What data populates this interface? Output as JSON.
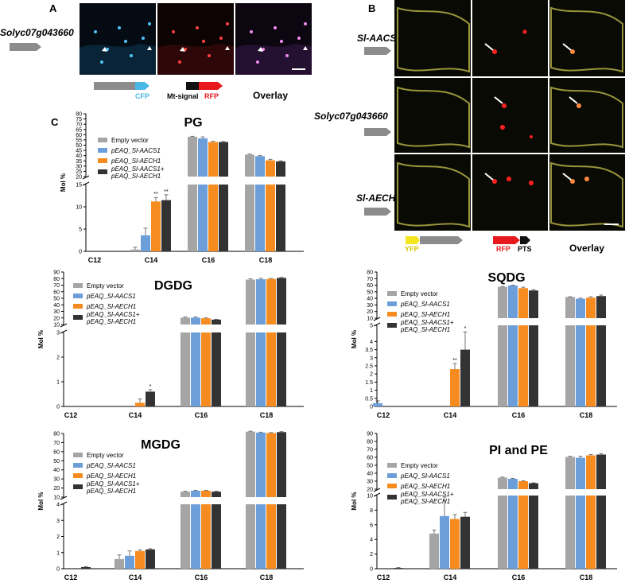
{
  "panel_letters": {
    "a": "A",
    "b": "B",
    "c": "C"
  },
  "panel_a": {
    "gene_label": "Solyc07g043660",
    "channel_captions": [
      "Overlay"
    ],
    "construct_labels": {
      "cfp": "CFP",
      "mt_signal": "Mt-signal",
      "rfp": "RFP"
    },
    "colors": {
      "cfp": "#49b8e6",
      "rfp": "#e8191c",
      "gene_arrow": "#8c8c8c",
      "mt_signal": "#111111"
    }
  },
  "panel_b": {
    "row_labels": [
      "Sl-AACS1",
      "Solyc07g043660",
      "Sl-AECH1"
    ],
    "construct_labels": {
      "yfp": "YFP",
      "rfp": "RFP",
      "pts": "PTS"
    },
    "overlay_caption": "Overlay",
    "colors": {
      "yfp": "#f3e61e",
      "rfp": "#e8191c",
      "pts": "#111111"
    }
  },
  "legend_entries": [
    "Empty vector",
    "pEAQ_Sl-AACS1",
    "pEAQ_Sl-AECH1",
    "pEAQ_Sl-AACS1+",
    "pEAQ_Sl-AECH1"
  ],
  "series_colors": [
    "#a5a5a5",
    "#6c9fd9",
    "#f68b1f",
    "#333333"
  ],
  "chart_data": [
    {
      "type": "bar",
      "title": "PG",
      "ylabel": "Mol %",
      "categories": [
        "C12",
        "C14",
        "C16",
        "C18"
      ],
      "ylim_lower": [
        0,
        15
      ],
      "yticks_lower": [
        0,
        5,
        10,
        15
      ],
      "ylim_upper": [
        20,
        80
      ],
      "yticks_upper": [
        20,
        25,
        30,
        35,
        40,
        45,
        50,
        55,
        60,
        65,
        70,
        75,
        80
      ],
      "series": [
        {
          "values": [
            0,
            0.4,
            58,
            41
          ],
          "errors": [
            0,
            0.5,
            0.5,
            0.5
          ]
        },
        {
          "values": [
            0,
            3.6,
            56.5,
            39.5
          ],
          "errors": [
            0,
            1.6,
            1.4,
            0.5
          ]
        },
        {
          "values": [
            0,
            11.2,
            53,
            35.5
          ],
          "errors": [
            0,
            0.9,
            0.8,
            1.0
          ]
        },
        {
          "values": [
            0,
            11.5,
            53,
            34.5
          ],
          "errors": [
            0,
            1.2,
            0.5,
            0.6
          ]
        }
      ],
      "significance": [
        {
          "category": "C14",
          "series": 2,
          "text": "**"
        },
        {
          "category": "C14",
          "series": 3,
          "text": "**"
        }
      ]
    },
    {
      "type": "bar",
      "title": "DGDG",
      "ylabel": "Mol %",
      "categories": [
        "C12",
        "C14",
        "C16",
        "C18"
      ],
      "ylim_lower": [
        0,
        3
      ],
      "yticks_lower": [
        0,
        1,
        2,
        3
      ],
      "ylim_upper": [
        10,
        90
      ],
      "yticks_upper": [
        10,
        20,
        30,
        40,
        50,
        60,
        70,
        80,
        90
      ],
      "series": [
        {
          "values": [
            0,
            0,
            20.5,
            78.5
          ],
          "errors": [
            0,
            0,
            1.0,
            1.0
          ]
        },
        {
          "values": [
            0,
            0,
            20.5,
            79
          ],
          "errors": [
            0,
            0,
            1.2,
            1.5
          ]
        },
        {
          "values": [
            0,
            0.15,
            19.5,
            79.5
          ],
          "errors": [
            0,
            0.15,
            0.6,
            0.8
          ]
        },
        {
          "values": [
            0,
            0.6,
            17.5,
            81
          ],
          "errors": [
            0,
            0.08,
            0.6,
            0.8
          ]
        }
      ],
      "significance": [
        {
          "category": "C14",
          "series": 3,
          "text": "*"
        }
      ]
    },
    {
      "type": "bar",
      "title": "SQDG",
      "ylabel": "Mol %",
      "categories": [
        "C12",
        "C14",
        "C16",
        "C18"
      ],
      "ylim_lower": [
        0,
        5
      ],
      "yticks_lower": [
        0,
        0.5,
        1,
        1.5,
        2,
        2.5,
        3,
        3.5,
        4,
        5
      ],
      "ylim_upper": [
        10,
        80
      ],
      "yticks_upper": [
        10,
        20,
        30,
        40,
        50,
        60,
        70,
        80
      ],
      "series": [
        {
          "values": [
            0,
            0,
            57.5,
            42
          ],
          "errors": [
            0,
            0,
            0.5,
            0.5
          ]
        },
        {
          "values": [
            0.2,
            0,
            59.5,
            39.5
          ],
          "errors": [
            0.15,
            0,
            0.6,
            0.8
          ]
        },
        {
          "values": [
            0,
            2.3,
            55.5,
            41
          ],
          "errors": [
            0,
            0.35,
            1.5,
            1.5
          ]
        },
        {
          "values": [
            0,
            3.5,
            52,
            43.5
          ],
          "errors": [
            0,
            1.1,
            1.2,
            1.5
          ]
        }
      ],
      "significance": [
        {
          "category": "C14",
          "series": 2,
          "text": "**"
        },
        {
          "category": "C14",
          "series": 3,
          "text": "*"
        }
      ]
    },
    {
      "type": "bar",
      "title": "MGDG",
      "ylabel": "Mol %",
      "categories": [
        "C12",
        "C14",
        "C16",
        "C18"
      ],
      "ylim_lower": [
        0,
        4
      ],
      "yticks_lower": [
        0,
        1,
        2,
        3,
        4
      ],
      "ylim_upper": [
        10,
        80
      ],
      "yticks_upper": [
        10,
        20,
        30,
        40,
        50,
        60,
        70,
        80
      ],
      "series": [
        {
          "values": [
            0,
            0.6,
            16,
            82
          ],
          "errors": [
            0,
            0.25,
            0.5,
            0.5
          ]
        },
        {
          "values": [
            0,
            0.8,
            17,
            81
          ],
          "errors": [
            0,
            0.3,
            0.5,
            0.5
          ]
        },
        {
          "values": [
            0,
            1.1,
            17,
            80.5
          ],
          "errors": [
            0,
            0.08,
            0.5,
            0.5
          ]
        },
        {
          "values": [
            0.1,
            1.2,
            16,
            81.5
          ],
          "errors": [
            0.04,
            0.04,
            0.5,
            0.5
          ]
        }
      ],
      "significance": []
    },
    {
      "type": "bar",
      "title": "PI and PE",
      "ylabel": "Mol %",
      "categories": [
        "C12",
        "C14",
        "C16",
        "C18"
      ],
      "ylim_lower": [
        0,
        10
      ],
      "yticks_lower": [
        0,
        2,
        4,
        6,
        8,
        10
      ],
      "ylim_upper": [
        20,
        90
      ],
      "yticks_upper": [
        20,
        30,
        40,
        50,
        60,
        70,
        80,
        90
      ],
      "series": [
        {
          "values": [
            0,
            4.8,
            34.5,
            60.5
          ],
          "errors": [
            0,
            0.5,
            0.6,
            1.0
          ]
        },
        {
          "values": [
            0,
            7.2,
            33,
            59.5
          ],
          "errors": [
            0,
            2.6,
            0.6,
            2.0
          ]
        },
        {
          "values": [
            0,
            6.8,
            30,
            62.5
          ],
          "errors": [
            0,
            0.6,
            0.5,
            1.0
          ]
        },
        {
          "values": [
            0.1,
            7.1,
            27.5,
            63.5
          ],
          "errors": [
            0.05,
            0.6,
            0.5,
            1.3
          ]
        }
      ],
      "significance": []
    }
  ]
}
